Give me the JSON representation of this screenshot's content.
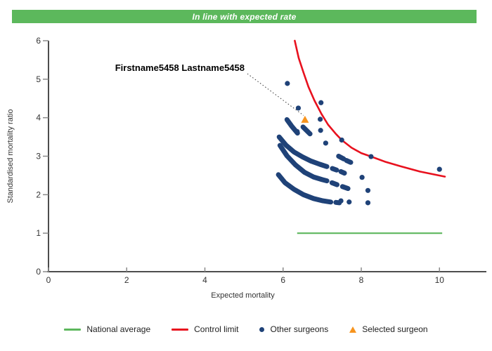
{
  "header": {
    "text": "In line with expected rate",
    "bg_color": "#5cb85c",
    "text_color": "#ffffff"
  },
  "chart_data": {
    "type": "scatter",
    "title": "",
    "xlabel": "Expected mortality",
    "ylabel": "Standardised mortality ratio",
    "xlim": [
      0,
      11.2
    ],
    "ylim": [
      0,
      6
    ],
    "x_ticks": [
      0,
      2,
      4,
      6,
      8,
      10
    ],
    "y_ticks": [
      0,
      1,
      2,
      3,
      4,
      5,
      6
    ],
    "grid": false,
    "legend_position": "bottom",
    "annotation": {
      "label": "Firstname5458 Lastname5458",
      "target_x": 6.56,
      "target_y": 3.95
    },
    "series": {
      "national_average": {
        "name": "National average",
        "color": "#5db75d",
        "y": 1.0,
        "x_start": 6.36,
        "x_end": 10.07
      },
      "control_limit": {
        "name": "Control limit",
        "color": "#e8111e",
        "points": [
          [
            6.3,
            6.0
          ],
          [
            6.4,
            5.55
          ],
          [
            6.52,
            5.18
          ],
          [
            6.65,
            4.8
          ],
          [
            6.8,
            4.45
          ],
          [
            6.98,
            4.1
          ],
          [
            7.15,
            3.82
          ],
          [
            7.35,
            3.58
          ],
          [
            7.5,
            3.42
          ],
          [
            7.75,
            3.22
          ],
          [
            8.0,
            3.08
          ],
          [
            8.25,
            2.99
          ],
          [
            8.6,
            2.86
          ],
          [
            9.0,
            2.74
          ],
          [
            9.5,
            2.6
          ],
          [
            10.14,
            2.47
          ]
        ]
      },
      "other_surgeons": {
        "name": "Other surgeons",
        "color": "#1f4278",
        "bands": [
          [
            [
              6.1,
              3.95
            ],
            [
              6.22,
              3.78
            ],
            [
              6.37,
              3.6
            ]
          ],
          [
            [
              5.9,
              3.5
            ],
            [
              6.08,
              3.28
            ],
            [
              6.28,
              3.11
            ],
            [
              6.5,
              2.98
            ],
            [
              6.72,
              2.87
            ],
            [
              6.94,
              2.79
            ],
            [
              7.12,
              2.73
            ]
          ],
          [
            [
              5.92,
              3.28
            ],
            [
              6.1,
              3.01
            ],
            [
              6.32,
              2.77
            ],
            [
              6.55,
              2.58
            ],
            [
              6.78,
              2.46
            ],
            [
              7.0,
              2.39
            ],
            [
              7.12,
              2.36
            ]
          ],
          [
            [
              5.88,
              2.52
            ],
            [
              6.05,
              2.31
            ],
            [
              6.28,
              2.14
            ],
            [
              6.52,
              2.0
            ],
            [
              6.78,
              1.9
            ],
            [
              7.02,
              1.84
            ],
            [
              7.22,
              1.81
            ]
          ]
        ],
        "dash_segments": [
          [
            [
              6.51,
              3.76
            ],
            [
              6.69,
              3.58
            ]
          ],
          [
            [
              7.42,
              3.0
            ],
            [
              7.55,
              2.93
            ]
          ],
          [
            [
              7.62,
              2.89
            ],
            [
              7.73,
              2.84
            ]
          ],
          [
            [
              7.26,
              2.68
            ],
            [
              7.37,
              2.64
            ]
          ],
          [
            [
              7.48,
              2.6
            ],
            [
              7.57,
              2.56
            ]
          ],
          [
            [
              7.25,
              2.31
            ],
            [
              7.38,
              2.26
            ]
          ],
          [
            [
              7.52,
              2.21
            ],
            [
              7.66,
              2.16
            ]
          ],
          [
            [
              7.35,
              1.8
            ],
            [
              7.44,
              1.79
            ]
          ]
        ],
        "dots": [
          [
            6.11,
            4.89
          ],
          [
            6.97,
            4.39
          ],
          [
            6.39,
            4.25
          ],
          [
            6.95,
            3.96
          ],
          [
            6.96,
            3.67
          ],
          [
            6.36,
            3.64
          ],
          [
            7.09,
            3.34
          ],
          [
            7.5,
            3.42
          ],
          [
            8.25,
            2.99
          ],
          [
            10.0,
            2.66
          ],
          [
            8.02,
            2.45
          ],
          [
            8.17,
            2.11
          ],
          [
            8.17,
            1.79
          ],
          [
            7.69,
            1.81
          ],
          [
            7.48,
            1.84
          ]
        ]
      },
      "selected_surgeon": {
        "name": "Selected surgeon",
        "color": "#f7941e",
        "x": 6.56,
        "y": 3.95
      }
    }
  },
  "legend": [
    {
      "label": "National average",
      "marker": "line",
      "color": "#5db75d"
    },
    {
      "label": "Control limit",
      "marker": "line",
      "color": "#e8111e"
    },
    {
      "label": "Other surgeons",
      "marker": "dot",
      "color": "#1f4278"
    },
    {
      "label": "Selected surgeon",
      "marker": "triangle",
      "color": "#f7941e"
    }
  ]
}
